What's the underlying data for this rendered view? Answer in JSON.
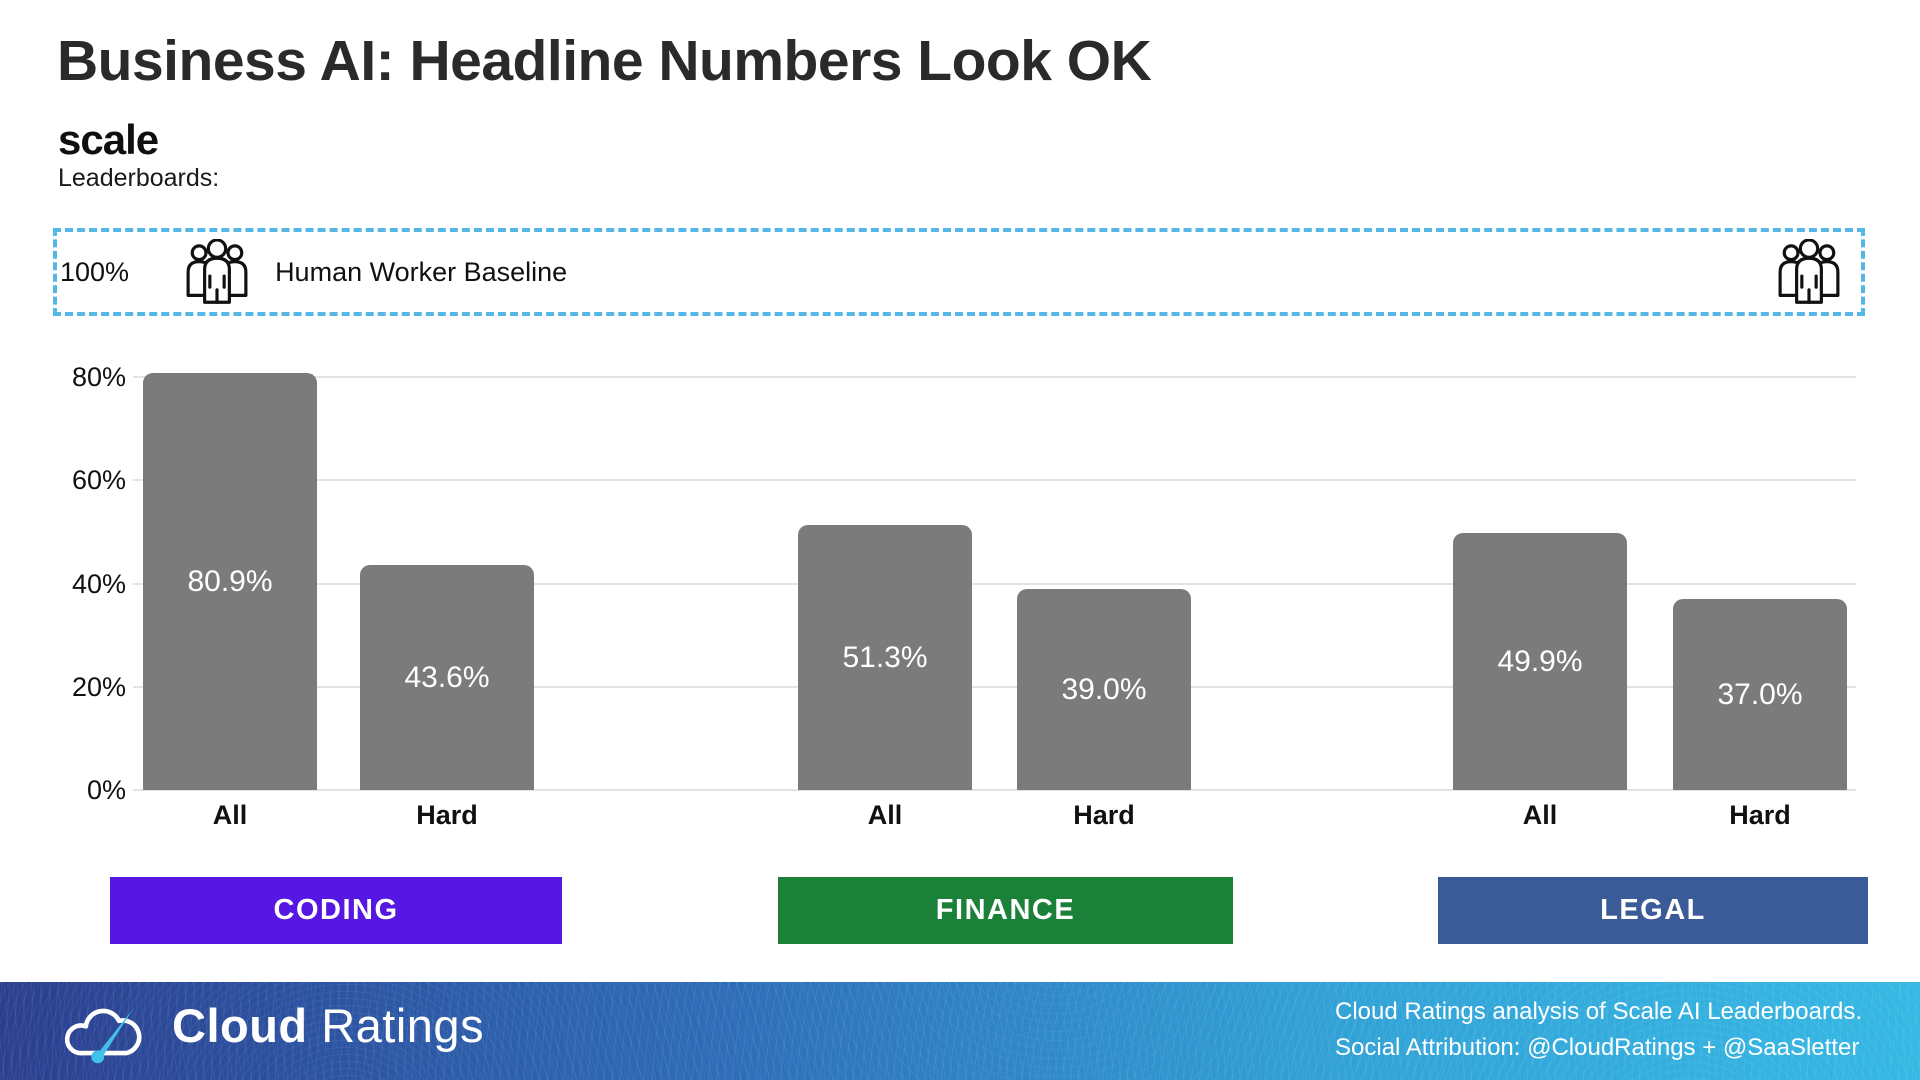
{
  "header": {
    "title": "Business AI: Headline Numbers Look OK",
    "logo_text": "scale",
    "logo_subtitle": "Leaderboards:"
  },
  "baseline": {
    "axis_label": "100%",
    "label": "Human Worker Baseline",
    "border_color": "#55b7e6",
    "icon": "people-group-icon"
  },
  "chart_data": {
    "type": "bar",
    "title": "Business AI: Headline Numbers Look OK",
    "xlabel": "",
    "ylabel": "",
    "ylim": [
      0,
      100
    ],
    "yticks": [
      "0%",
      "20%",
      "40%",
      "60%",
      "80%"
    ],
    "grid": true,
    "bar_color": "#7b7b7b",
    "value_label_color": "#ffffff",
    "baseline": {
      "value": 100,
      "label": "Human Worker Baseline"
    },
    "groups": [
      {
        "label": "CODING",
        "color": "#5617e3",
        "categories": [
          "All",
          "Hard"
        ],
        "values": [
          80.9,
          43.6
        ],
        "value_labels": [
          "80.9%",
          "43.6%"
        ]
      },
      {
        "label": "FINANCE",
        "color": "#1b8138",
        "categories": [
          "All",
          "Hard"
        ],
        "values": [
          51.3,
          39.0
        ],
        "value_labels": [
          "51.3%",
          "39.0%"
        ]
      },
      {
        "label": "LEGAL",
        "color": "#3b5b98",
        "categories": [
          "All",
          "Hard"
        ],
        "values": [
          49.9,
          37.0
        ],
        "value_labels": [
          "49.9%",
          "37.0%"
        ]
      }
    ]
  },
  "footer": {
    "brand_bold": "Cloud",
    "brand_light": "Ratings",
    "attribution_line1": "Cloud Ratings analysis of Scale AI Leaderboards.",
    "attribution_line2": "Social Attribution: @CloudRatings + @SaaSletter"
  }
}
